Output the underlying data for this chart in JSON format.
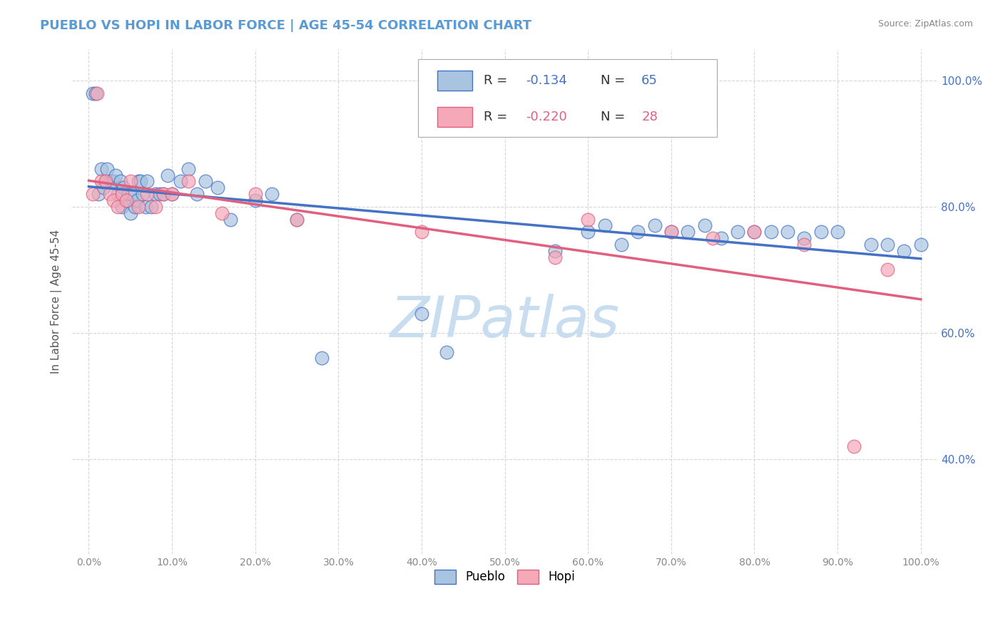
{
  "title": "PUEBLO VS HOPI IN LABOR FORCE | AGE 45-54 CORRELATION CHART",
  "source_text": "Source: ZipAtlas.com",
  "ylabel": "In Labor Force | Age 45-54",
  "pueblo_R": -0.134,
  "pueblo_N": 65,
  "hopi_R": -0.22,
  "hopi_N": 28,
  "pueblo_color": "#a8c4e0",
  "hopi_color": "#f4a8b8",
  "pueblo_edge_color": "#4472c4",
  "hopi_edge_color": "#e06080",
  "pueblo_line_color": "#4472c4",
  "hopi_line_color": "#e06080",
  "background_color": "#ffffff",
  "grid_color": "#cccccc",
  "title_color": "#5b9bd5",
  "source_color": "#888888",
  "watermark_color": "#c8ddf0",
  "ytick_color": "#4472c4",
  "xtick_color": "#888888",
  "xlim": [
    -0.02,
    1.02
  ],
  "ylim": [
    0.25,
    1.05
  ],
  "pueblo_x": [
    0.005,
    0.008,
    0.012,
    0.015,
    0.018,
    0.02,
    0.022,
    0.025,
    0.028,
    0.03,
    0.032,
    0.035,
    0.038,
    0.04,
    0.042,
    0.045,
    0.048,
    0.05,
    0.052,
    0.055,
    0.058,
    0.06,
    0.062,
    0.065,
    0.068,
    0.07,
    0.075,
    0.08,
    0.085,
    0.09,
    0.095,
    0.1,
    0.11,
    0.12,
    0.13,
    0.14,
    0.155,
    0.17,
    0.2,
    0.22,
    0.25,
    0.28,
    0.4,
    0.43,
    0.56,
    0.6,
    0.62,
    0.64,
    0.66,
    0.68,
    0.7,
    0.72,
    0.74,
    0.76,
    0.78,
    0.8,
    0.82,
    0.84,
    0.86,
    0.88,
    0.9,
    0.94,
    0.96,
    0.98,
    1.0
  ],
  "pueblo_y": [
    0.98,
    0.98,
    0.82,
    0.86,
    0.83,
    0.84,
    0.86,
    0.84,
    0.84,
    0.84,
    0.85,
    0.82,
    0.84,
    0.8,
    0.83,
    0.81,
    0.82,
    0.79,
    0.82,
    0.8,
    0.81,
    0.84,
    0.84,
    0.82,
    0.8,
    0.84,
    0.8,
    0.82,
    0.82,
    0.82,
    0.85,
    0.82,
    0.84,
    0.86,
    0.82,
    0.84,
    0.83,
    0.78,
    0.81,
    0.82,
    0.78,
    0.56,
    0.63,
    0.57,
    0.73,
    0.76,
    0.77,
    0.74,
    0.76,
    0.77,
    0.76,
    0.76,
    0.77,
    0.75,
    0.76,
    0.76,
    0.76,
    0.76,
    0.75,
    0.76,
    0.76,
    0.74,
    0.74,
    0.73,
    0.74
  ],
  "hopi_x": [
    0.005,
    0.01,
    0.015,
    0.02,
    0.025,
    0.03,
    0.035,
    0.04,
    0.045,
    0.05,
    0.06,
    0.07,
    0.08,
    0.09,
    0.1,
    0.12,
    0.16,
    0.2,
    0.25,
    0.4,
    0.56,
    0.6,
    0.7,
    0.75,
    0.8,
    0.86,
    0.92,
    0.96
  ],
  "hopi_y": [
    0.82,
    0.98,
    0.84,
    0.84,
    0.82,
    0.81,
    0.8,
    0.82,
    0.81,
    0.84,
    0.8,
    0.82,
    0.8,
    0.82,
    0.82,
    0.84,
    0.79,
    0.82,
    0.78,
    0.76,
    0.72,
    0.78,
    0.76,
    0.75,
    0.76,
    0.74,
    0.42,
    0.7
  ],
  "xtick_vals": [
    0.0,
    0.1,
    0.2,
    0.3,
    0.4,
    0.5,
    0.6,
    0.7,
    0.8,
    0.9,
    1.0
  ],
  "xtick_labels": [
    "0.0%",
    "10.0%",
    "20.0%",
    "30.0%",
    "40.0%",
    "50.0%",
    "60.0%",
    "70.0%",
    "80.0%",
    "90.0%",
    "100.0%"
  ],
  "ytick_vals": [
    0.4,
    0.6,
    0.8,
    1.0
  ],
  "ytick_labels": [
    "40.0%",
    "60.0%",
    "80.0%",
    "100.0%"
  ],
  "legend_labels": [
    "Pueblo",
    "Hopi"
  ],
  "figsize": [
    14.06,
    8.92
  ],
  "dpi": 100
}
